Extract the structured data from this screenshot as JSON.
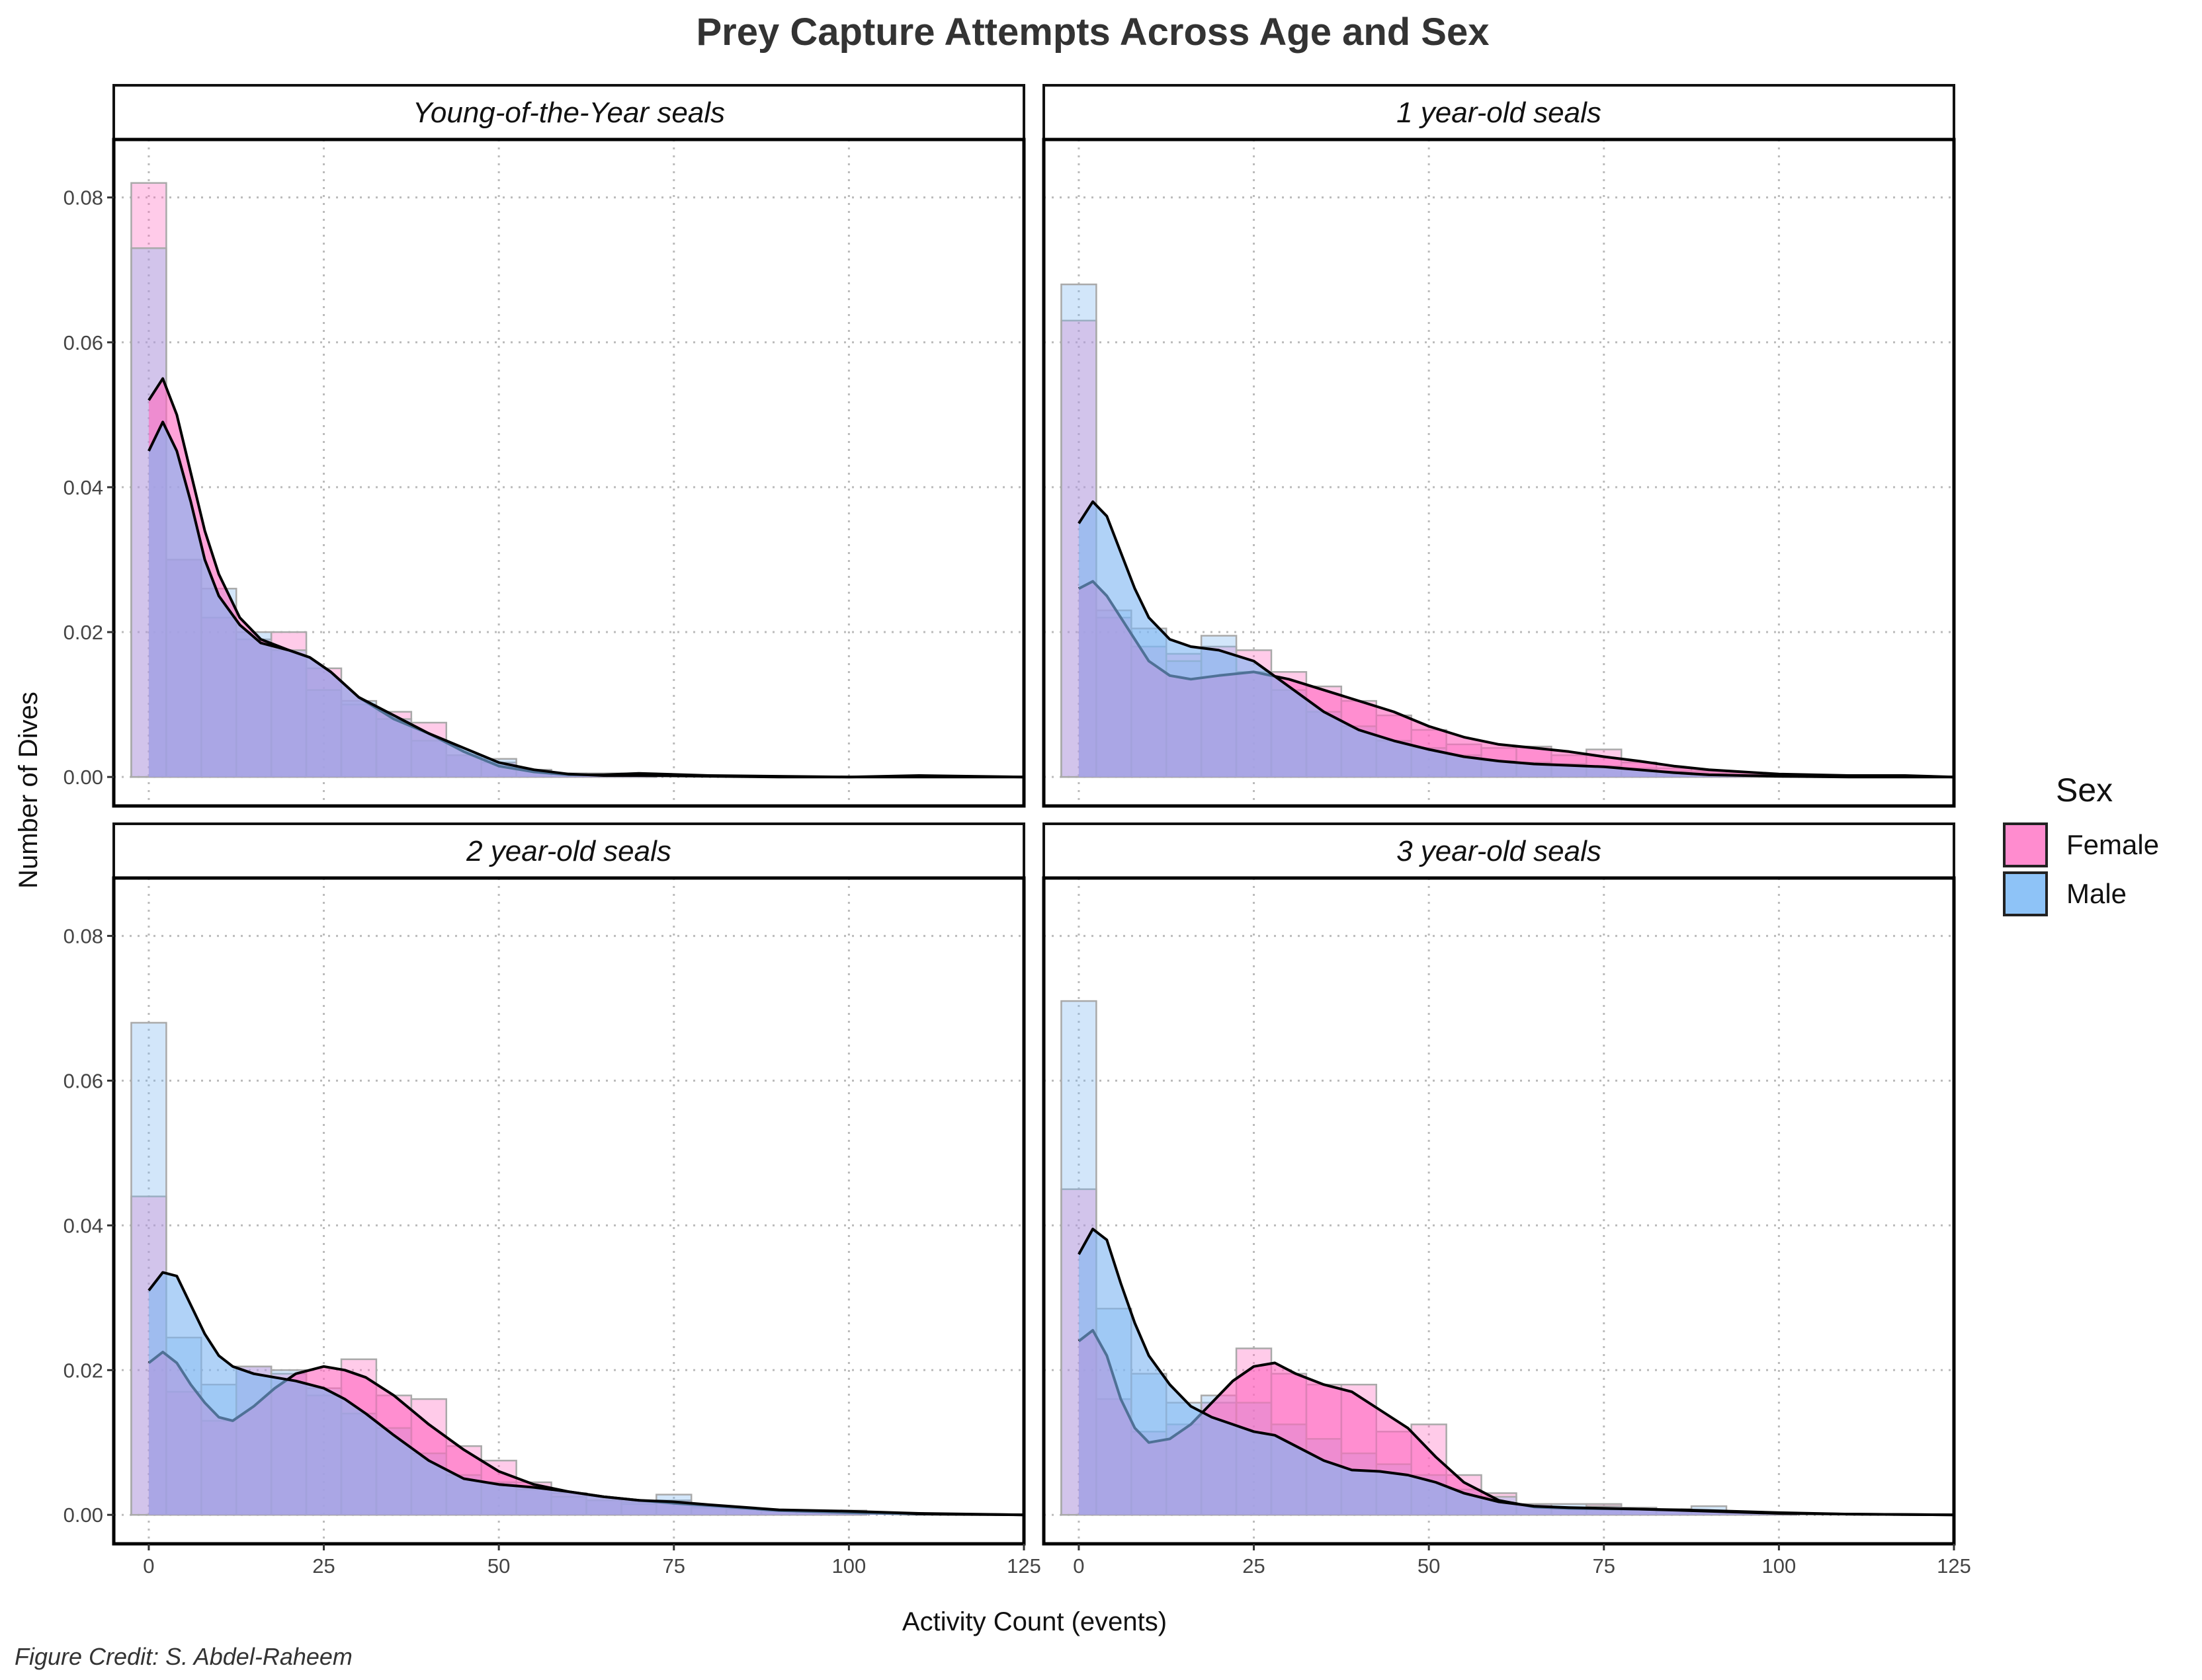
{
  "chart_data": {
    "type": "histogram-density",
    "title": "Prey Capture Attempts Across Age and Sex",
    "xlabel": "Activity Count (events)",
    "ylabel": "Number of Dives",
    "caption": "Figure Credit: S. Abdel-Raheem",
    "xlim": [
      -5,
      125
    ],
    "ylim": [
      -0.004,
      0.088
    ],
    "x_ticks": [
      0,
      25,
      50,
      75,
      100,
      125
    ],
    "x_tick_labels": [
      "0",
      "25",
      "50",
      "75",
      "100",
      "125"
    ],
    "y_ticks": [
      0,
      0.02,
      0.04,
      0.06,
      0.08
    ],
    "y_tick_labels": [
      "0.00",
      "0.02",
      "0.04",
      "0.06",
      "0.08"
    ],
    "grid": "dotted",
    "bin_width": 5,
    "legend": {
      "title": "Sex",
      "position": "right",
      "entries": [
        {
          "label": "Female",
          "color": "#ff8ccf"
        },
        {
          "label": "Male",
          "color": "#8ec3f7"
        }
      ]
    },
    "series_colors": {
      "Female": "#ff69c0",
      "Male": "#7fb6f2"
    },
    "panels": [
      {
        "strip": "Young-of-the-Year seals",
        "histogram": {
          "bin_centers": [
            0,
            5,
            10,
            15,
            20,
            25,
            30,
            35,
            40,
            45,
            50,
            55,
            60,
            65,
            70
          ],
          "Female": [
            0.082,
            0.03,
            0.022,
            0.019,
            0.02,
            0.015,
            0.01,
            0.009,
            0.0075,
            0.003,
            0.002,
            0.001,
            0.0005,
            0.0005,
            0.0005
          ],
          "Male": [
            0.073,
            0.03,
            0.026,
            0.02,
            0.0175,
            0.012,
            0.0105,
            0.008,
            0.005,
            0.003,
            0.0025,
            0.001,
            0.0005,
            0.0005,
            0.0003
          ]
        },
        "density": {
          "x": [
            0,
            2,
            4,
            6,
            8,
            10,
            13,
            16,
            20,
            23,
            26,
            30,
            35,
            40,
            45,
            50,
            55,
            60,
            65,
            70,
            80,
            90,
            100,
            110,
            125
          ],
          "Female": [
            0.052,
            0.055,
            0.05,
            0.042,
            0.034,
            0.028,
            0.022,
            0.019,
            0.0175,
            0.0165,
            0.0145,
            0.011,
            0.008,
            0.006,
            0.0035,
            0.0015,
            0.0007,
            0.0003,
            0.0003,
            0.0005,
            0.0002,
            0.0001,
            0.0,
            0.0002,
            0.0
          ],
          "Male": [
            0.045,
            0.049,
            0.045,
            0.038,
            0.03,
            0.025,
            0.021,
            0.0185,
            0.0175,
            0.0165,
            0.0145,
            0.011,
            0.0085,
            0.006,
            0.004,
            0.002,
            0.001,
            0.0004,
            0.0002,
            0.0002,
            0.0001,
            0.0,
            0.0,
            0.0,
            0.0
          ]
        }
      },
      {
        "strip": "1 year-old seals",
        "histogram": {
          "bin_centers": [
            0,
            5,
            10,
            15,
            20,
            25,
            30,
            35,
            40,
            45,
            50,
            55,
            60,
            65,
            70,
            75,
            80,
            85,
            90,
            95,
            100
          ],
          "Female": [
            0.063,
            0.022,
            0.018,
            0.017,
            0.018,
            0.0175,
            0.0145,
            0.0125,
            0.0105,
            0.0085,
            0.0065,
            0.0045,
            0.004,
            0.0042,
            0.003,
            0.0038,
            0.002,
            0.0012,
            0.0008,
            0.0006,
            0.0003
          ],
          "Male": [
            0.068,
            0.023,
            0.0205,
            0.016,
            0.0195,
            0.0145,
            0.012,
            0.009,
            0.007,
            0.005,
            0.004,
            0.003,
            0.0022,
            0.002,
            0.0018,
            0.0015,
            0.0012,
            0.0008,
            0.0005,
            0.0003,
            0.0002
          ]
        },
        "density": {
          "x": [
            0,
            2,
            4,
            6,
            8,
            10,
            13,
            16,
            20,
            25,
            30,
            35,
            40,
            45,
            50,
            55,
            60,
            65,
            70,
            75,
            80,
            85,
            90,
            100,
            110,
            118,
            125
          ],
          "Female": [
            0.026,
            0.027,
            0.025,
            0.022,
            0.019,
            0.016,
            0.014,
            0.0135,
            0.014,
            0.0145,
            0.0135,
            0.012,
            0.0105,
            0.009,
            0.007,
            0.0055,
            0.0045,
            0.004,
            0.0035,
            0.0028,
            0.0022,
            0.0015,
            0.001,
            0.0004,
            0.0002,
            0.0002,
            0.0
          ],
          "Male": [
            0.035,
            0.038,
            0.036,
            0.031,
            0.026,
            0.022,
            0.019,
            0.018,
            0.0175,
            0.016,
            0.0125,
            0.009,
            0.0065,
            0.005,
            0.0038,
            0.0028,
            0.0022,
            0.0018,
            0.0016,
            0.0014,
            0.001,
            0.0006,
            0.0003,
            0.0001,
            0.0,
            0.0,
            0.0
          ]
        }
      },
      {
        "strip": "2 year-old seals",
        "histogram": {
          "bin_centers": [
            0,
            5,
            10,
            15,
            20,
            25,
            30,
            35,
            40,
            45,
            50,
            55,
            60,
            65,
            70,
            75,
            80,
            85,
            90,
            95,
            100
          ],
          "Female": [
            0.044,
            0.017,
            0.013,
            0.0205,
            0.0195,
            0.0165,
            0.0215,
            0.0165,
            0.016,
            0.0095,
            0.0075,
            0.0045,
            0.003,
            0.002,
            0.0015,
            0.002,
            0.001,
            0.0008,
            0.0005,
            0.0004,
            0.0004
          ],
          "Male": [
            0.068,
            0.0245,
            0.018,
            0.0205,
            0.02,
            0.0175,
            0.014,
            0.012,
            0.0085,
            0.0055,
            0.0045,
            0.0035,
            0.0025,
            0.002,
            0.0018,
            0.0028,
            0.0012,
            0.0008,
            0.0006,
            0.0006,
            0.0006
          ]
        },
        "density": {
          "x": [
            0,
            2,
            4,
            6,
            8,
            10,
            12,
            15,
            18,
            21,
            25,
            28,
            31,
            35,
            40,
            45,
            50,
            55,
            60,
            65,
            70,
            75,
            80,
            90,
            100,
            110,
            125
          ],
          "Female": [
            0.021,
            0.0225,
            0.021,
            0.018,
            0.0155,
            0.0135,
            0.013,
            0.015,
            0.0175,
            0.0195,
            0.0205,
            0.02,
            0.019,
            0.0165,
            0.0125,
            0.009,
            0.006,
            0.0042,
            0.0032,
            0.0025,
            0.002,
            0.0016,
            0.0013,
            0.0006,
            0.0003,
            0.0001,
            0.0
          ],
          "Male": [
            0.031,
            0.0335,
            0.033,
            0.029,
            0.025,
            0.022,
            0.0205,
            0.0195,
            0.019,
            0.0185,
            0.0175,
            0.016,
            0.014,
            0.011,
            0.0075,
            0.005,
            0.0042,
            0.0038,
            0.0032,
            0.0025,
            0.002,
            0.0018,
            0.0014,
            0.0007,
            0.0005,
            0.0002,
            0.0
          ]
        }
      },
      {
        "strip": "3 year-old seals",
        "histogram": {
          "bin_centers": [
            0,
            5,
            10,
            15,
            20,
            25,
            30,
            35,
            40,
            45,
            50,
            55,
            60,
            65,
            70,
            75,
            80,
            85,
            90,
            95,
            100
          ],
          "Female": [
            0.045,
            0.016,
            0.0115,
            0.0125,
            0.0155,
            0.023,
            0.0195,
            0.018,
            0.018,
            0.0115,
            0.0125,
            0.0055,
            0.003,
            0.0015,
            0.001,
            0.0015,
            0.0008,
            0.0006,
            0.0006,
            0.0004,
            0.0002
          ],
          "Male": [
            0.071,
            0.0285,
            0.0195,
            0.0155,
            0.0165,
            0.0155,
            0.0125,
            0.0105,
            0.0085,
            0.007,
            0.0055,
            0.0035,
            0.0025,
            0.0015,
            0.0015,
            0.0012,
            0.001,
            0.0008,
            0.0012,
            0.0004,
            0.0002
          ]
        },
        "density": {
          "x": [
            0,
            2,
            4,
            6,
            8,
            10,
            13,
            16,
            19,
            22,
            25,
            28,
            31,
            35,
            39,
            43,
            47,
            51,
            55,
            60,
            65,
            70,
            80,
            90,
            100,
            110,
            125
          ],
          "Female": [
            0.024,
            0.0255,
            0.022,
            0.016,
            0.012,
            0.01,
            0.0105,
            0.0125,
            0.0155,
            0.0185,
            0.0205,
            0.021,
            0.0195,
            0.018,
            0.017,
            0.0145,
            0.012,
            0.008,
            0.0045,
            0.002,
            0.0011,
            0.0009,
            0.0008,
            0.0006,
            0.0003,
            0.0001,
            0.0
          ],
          "Male": [
            0.036,
            0.0395,
            0.038,
            0.032,
            0.0265,
            0.022,
            0.018,
            0.015,
            0.0135,
            0.0125,
            0.0115,
            0.011,
            0.0095,
            0.0075,
            0.0062,
            0.006,
            0.0055,
            0.0045,
            0.003,
            0.0018,
            0.0012,
            0.001,
            0.0008,
            0.0005,
            0.0002,
            0.0001,
            0.0
          ]
        }
      }
    ]
  }
}
